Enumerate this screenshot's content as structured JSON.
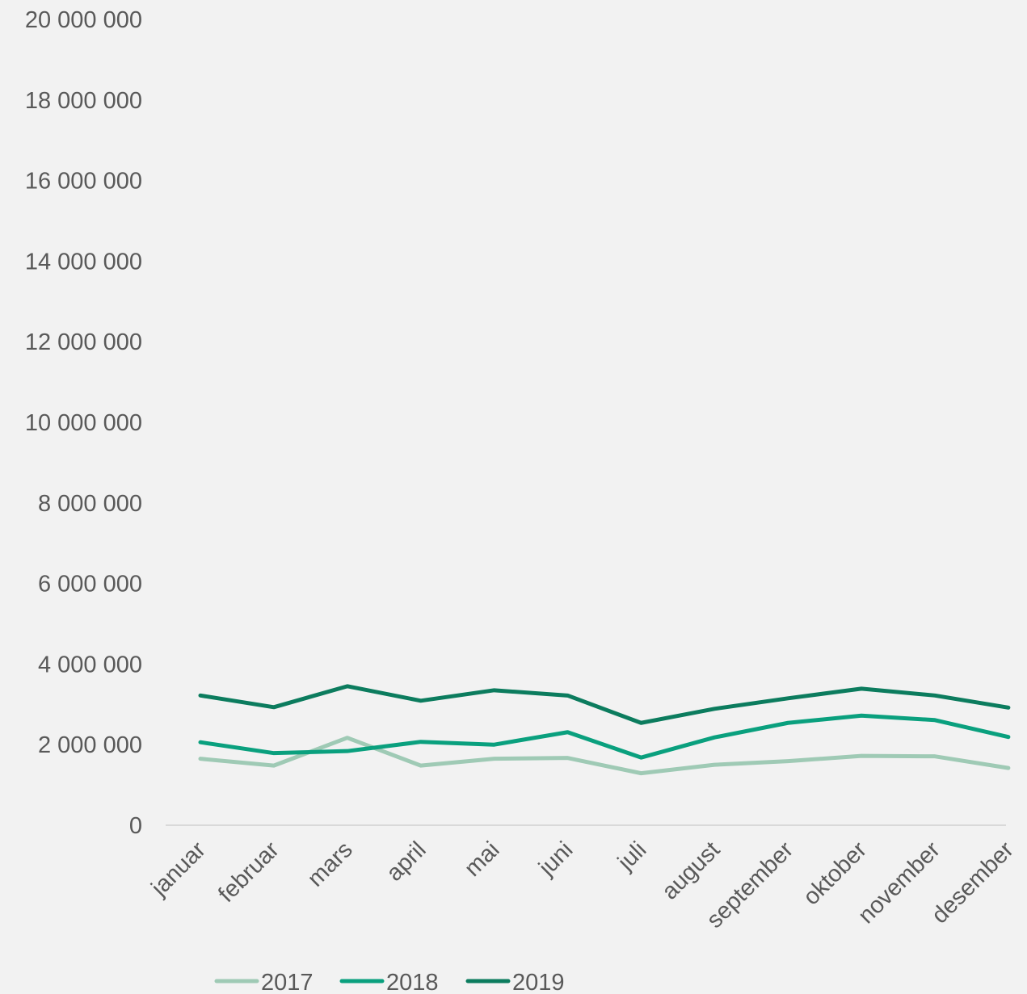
{
  "chart_data": {
    "type": "line",
    "categories": [
      "januar",
      "februar",
      "mars",
      "april",
      "mai",
      "juni",
      "juli",
      "august",
      "september",
      "oktober",
      "november",
      "desember"
    ],
    "series": [
      {
        "name": "2017",
        "color": "#9fcab5",
        "values": [
          1650000,
          1480000,
          2170000,
          1480000,
          1650000,
          1670000,
          1290000,
          1500000,
          1590000,
          1720000,
          1710000,
          1420000
        ]
      },
      {
        "name": "2018",
        "color": "#0aa07e",
        "values": [
          2060000,
          1790000,
          1840000,
          2070000,
          2000000,
          2310000,
          1680000,
          2180000,
          2540000,
          2720000,
          2610000,
          2190000
        ]
      },
      {
        "name": "2019",
        "color": "#0c7c5e",
        "values": [
          3220000,
          2930000,
          3450000,
          3090000,
          3350000,
          3220000,
          2540000,
          2890000,
          3150000,
          3390000,
          3220000,
          2920000
        ]
      }
    ],
    "y_ticks": [
      "0",
      "2 000 000",
      "4 000 000",
      "6 000 000",
      "8 000 000",
      "10 000 000",
      "12 000 000",
      "14 000 000",
      "16 000 000",
      "18 000 000",
      "20 000 000"
    ],
    "ylim": [
      0,
      20000000
    ],
    "grid": false,
    "legend_position": "bottom"
  }
}
